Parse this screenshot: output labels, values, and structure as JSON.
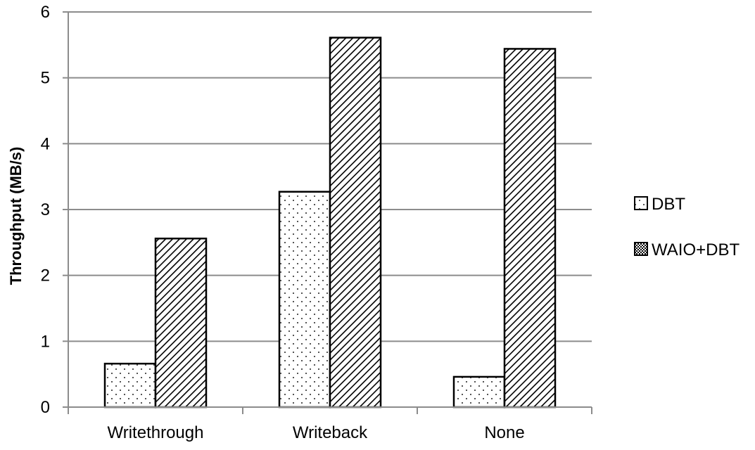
{
  "chart_data": {
    "type": "bar",
    "categories": [
      "Writethrough",
      "Writeback",
      "None"
    ],
    "series": [
      {
        "name": "DBT",
        "values": [
          0.66,
          3.27,
          0.46
        ],
        "pattern": "dots"
      },
      {
        "name": "WAIO+DBT",
        "values": [
          2.56,
          5.61,
          5.44
        ],
        "pattern": "diagonal-hatch"
      }
    ],
    "title": "",
    "xlabel": "",
    "ylabel": "Throughput (MB/s)",
    "ylim": [
      0,
      6
    ],
    "yticks": [
      "0",
      "1",
      "2",
      "3",
      "4",
      "5",
      "6"
    ],
    "grid": true,
    "legend_position": "right",
    "colors": {
      "bar_fill": "#ffffff",
      "bar_stroke": "#000000",
      "grid": "#8c8c8c",
      "axis": "#8c8c8c"
    }
  }
}
